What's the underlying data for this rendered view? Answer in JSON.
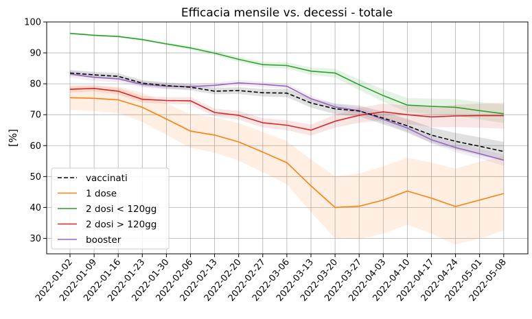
{
  "chart_data": {
    "type": "line",
    "title": "Efficacia mensile vs. decessi - totale",
    "xlabel": "",
    "ylabel": "[%]",
    "ylim": [
      25,
      100
    ],
    "yticks": [
      30,
      40,
      50,
      60,
      70,
      80,
      90,
      100
    ],
    "grid": true,
    "legend_position": "lower-left",
    "categories": [
      "2022-01-02",
      "2022-01-09",
      "2022-01-16",
      "2022-01-23",
      "2022-01-30",
      "2022-02-06",
      "2022-02-13",
      "2022-02-20",
      "2022-02-27",
      "2022-03-06",
      "2022-03-13",
      "2022-03-20",
      "2022-03-27",
      "2022-04-03",
      "2022-04-10",
      "2022-04-17",
      "2022-04-24",
      "2022-05-01",
      "2022-05-08"
    ],
    "series": [
      {
        "name": "vaccinati",
        "color": "#000000",
        "dashed": true,
        "values": [
          83.5,
          82.9,
          82.4,
          80.2,
          79.4,
          78.9,
          77.6,
          77.8,
          77.1,
          77.0,
          73.8,
          71.9,
          71.2,
          68.9,
          66.4,
          63.4,
          61.4,
          59.8,
          58.1
        ],
        "lower": [
          82.6,
          81.9,
          81.4,
          79.2,
          78.4,
          77.9,
          76.6,
          76.7,
          75.9,
          75.7,
          72.3,
          70.2,
          69.4,
          66.9,
          64.2,
          60.9,
          58.7,
          56.9,
          55.0
        ],
        "upper": [
          84.4,
          83.9,
          83.4,
          81.2,
          80.4,
          79.9,
          78.6,
          78.9,
          78.3,
          78.3,
          75.3,
          73.6,
          73.0,
          70.9,
          68.6,
          65.9,
          64.1,
          62.7,
          61.2
        ]
      },
      {
        "name": "1 dose",
        "color": "#ff7f0e",
        "dashed": false,
        "values": [
          75.5,
          75.3,
          74.8,
          72.4,
          68.6,
          64.7,
          63.4,
          61.2,
          57.9,
          54.5,
          47.0,
          40.0,
          40.4,
          42.4,
          45.3,
          43.0,
          40.3,
          42.4,
          44.5
        ],
        "lower": [
          71.5,
          71.2,
          70.5,
          67.7,
          63.5,
          59.3,
          57.7,
          55.1,
          51.4,
          47.5,
          38.5,
          30.0,
          29.8,
          31.5,
          34.5,
          31.5,
          28.0,
          30.0,
          32.5
        ],
        "upper": [
          79.5,
          79.4,
          79.1,
          77.1,
          73.7,
          70.1,
          69.1,
          67.3,
          64.4,
          61.5,
          55.5,
          50.0,
          51.0,
          53.3,
          56.1,
          54.5,
          52.6,
          54.8,
          56.5
        ]
      },
      {
        "name": "2 dosi < 120gg",
        "color": "#2ca02c",
        "dashed": false,
        "values": [
          96.3,
          95.7,
          95.3,
          94.3,
          92.9,
          91.6,
          89.9,
          87.9,
          86.2,
          85.9,
          84.1,
          83.5,
          79.7,
          76.2,
          73.1,
          72.7,
          72.4,
          71.3,
          70.3
        ],
        "lower": [
          96.0,
          95.4,
          95.0,
          93.9,
          92.4,
          91.0,
          89.2,
          87.1,
          85.3,
          84.9,
          82.9,
          82.1,
          78.0,
          74.2,
          70.8,
          70.2,
          69.7,
          68.5,
          67.3
        ],
        "upper": [
          96.6,
          96.0,
          95.6,
          94.7,
          93.4,
          92.2,
          90.6,
          88.7,
          87.1,
          86.9,
          85.3,
          84.9,
          81.4,
          78.2,
          75.4,
          75.2,
          75.1,
          74.1,
          73.3
        ]
      },
      {
        "name": "2 dosi > 120gg",
        "color": "#d62728",
        "dashed": false,
        "values": [
          78.2,
          78.5,
          77.6,
          75.0,
          74.6,
          74.5,
          70.7,
          69.8,
          67.4,
          66.6,
          65.0,
          67.9,
          69.8,
          70.9,
          70.0,
          69.3,
          69.6,
          69.7,
          69.7
        ],
        "lower": [
          77.2,
          77.5,
          76.5,
          73.9,
          73.5,
          73.3,
          69.4,
          68.4,
          65.9,
          65.0,
          63.2,
          65.8,
          67.4,
          68.2,
          67.0,
          66.0,
          66.0,
          65.8,
          65.5
        ],
        "upper": [
          79.2,
          79.5,
          78.7,
          76.1,
          75.7,
          75.7,
          72.0,
          71.2,
          68.9,
          68.2,
          66.8,
          70.0,
          72.2,
          73.6,
          73.0,
          72.6,
          73.2,
          73.6,
          73.9
        ]
      },
      {
        "name": "booster",
        "color": "#9467bd",
        "dashed": false,
        "values": [
          83.2,
          82.1,
          81.6,
          79.8,
          79.2,
          79.1,
          79.5,
          80.3,
          79.8,
          79.2,
          75.2,
          72.5,
          71.3,
          68.5,
          65.7,
          61.9,
          59.4,
          57.4,
          55.3
        ],
        "lower": [
          82.0,
          80.9,
          80.5,
          78.8,
          78.2,
          78.2,
          78.6,
          79.4,
          78.9,
          78.3,
          74.2,
          71.5,
          70.3,
          67.4,
          64.5,
          60.6,
          57.9,
          55.8,
          53.5
        ],
        "upper": [
          84.4,
          83.3,
          82.7,
          80.8,
          80.2,
          80.0,
          80.4,
          81.2,
          80.7,
          80.1,
          76.2,
          73.5,
          72.3,
          69.6,
          66.9,
          63.2,
          60.9,
          59.0,
          57.1
        ]
      }
    ]
  }
}
